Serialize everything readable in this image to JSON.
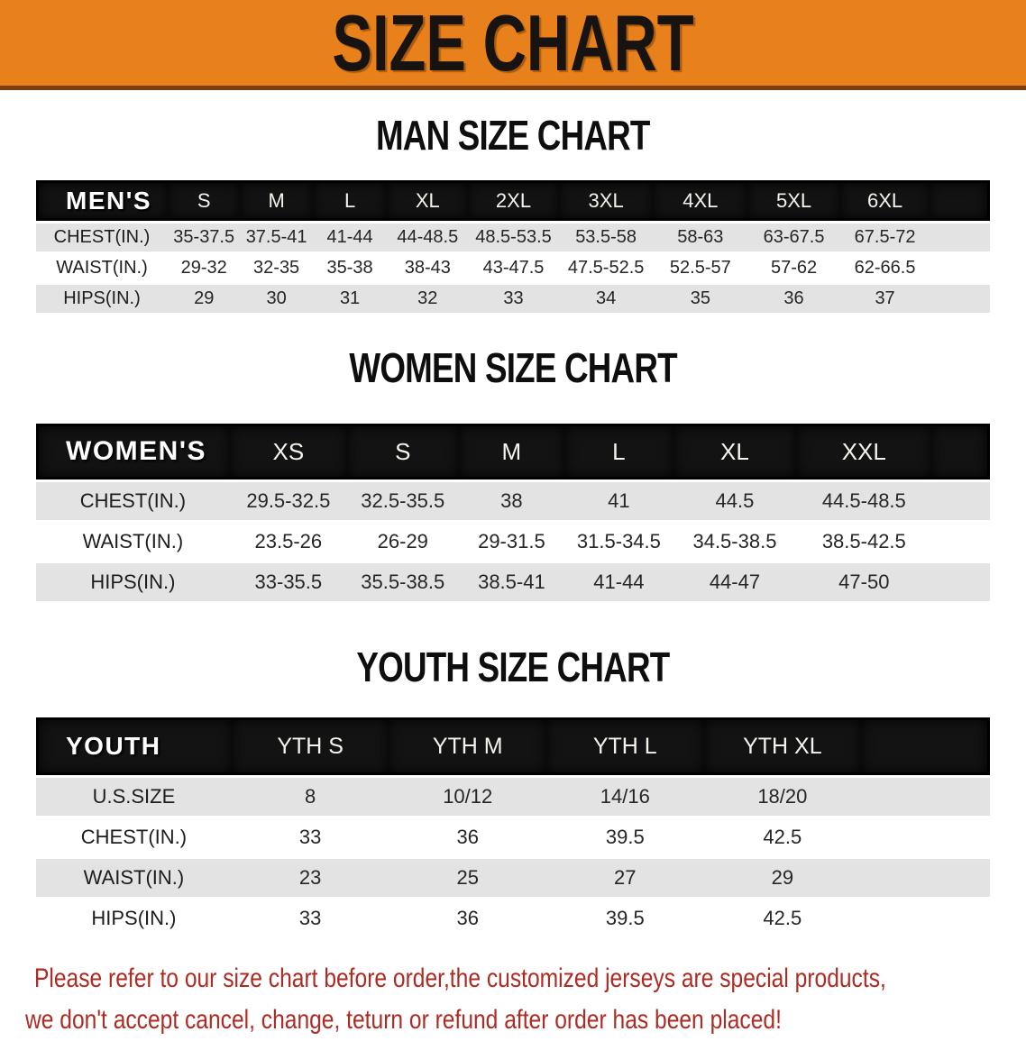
{
  "banner": {
    "title": "SIZE CHART"
  },
  "chart_data": [
    {
      "type": "table",
      "id": "men",
      "title": "MAN SIZE CHART",
      "corner_label": "MEN'S",
      "columns": [
        "S",
        "M",
        "L",
        "XL",
        "2XL",
        "3XL",
        "4XL",
        "5XL",
        "6XL"
      ],
      "rows": [
        {
          "label": "CHEST(IN.)",
          "values": [
            "35-37.5",
            "37.5-41",
            "41-44",
            "44-48.5",
            "48.5-53.5",
            "53.5-58",
            "58-63",
            "63-67.5",
            "67.5-72"
          ]
        },
        {
          "label": "WAIST(IN.)",
          "values": [
            "29-32",
            "32-35",
            "35-38",
            "38-43",
            "43-47.5",
            "47.5-52.5",
            "52.5-57",
            "57-62",
            "62-66.5"
          ]
        },
        {
          "label": "HIPS(IN.)",
          "values": [
            "29",
            "30",
            "31",
            "32",
            "33",
            "34",
            "35",
            "36",
            "37"
          ]
        }
      ]
    },
    {
      "type": "table",
      "id": "women",
      "title": "WOMEN SIZE CHART",
      "corner_label": "WOMEN'S",
      "columns": [
        "XS",
        "S",
        "M",
        "L",
        "XL",
        "XXL"
      ],
      "rows": [
        {
          "label": "CHEST(IN.)",
          "values": [
            "29.5-32.5",
            "32.5-35.5",
            "38",
            "41",
            "44.5",
            "44.5-48.5"
          ]
        },
        {
          "label": "WAIST(IN.)",
          "values": [
            "23.5-26",
            "26-29",
            "29-31.5",
            "31.5-34.5",
            "34.5-38.5",
            "38.5-42.5"
          ]
        },
        {
          "label": "HIPS(IN.)",
          "values": [
            "33-35.5",
            "35.5-38.5",
            "38.5-41",
            "41-44",
            "44-47",
            "47-50"
          ]
        }
      ]
    },
    {
      "type": "table",
      "id": "youth",
      "title": "YOUTH SIZE CHART",
      "corner_label": "YOUTH",
      "columns": [
        "YTH S",
        "YTH M",
        "YTH L",
        "YTH XL"
      ],
      "rows": [
        {
          "label": "U.S.SIZE",
          "values": [
            "8",
            "10/12",
            "14/16",
            "18/20"
          ]
        },
        {
          "label": "CHEST(IN.)",
          "values": [
            "33",
            "36",
            "39.5",
            "42.5"
          ]
        },
        {
          "label": "WAIST(IN.)",
          "values": [
            "23",
            "25",
            "27",
            "29"
          ]
        },
        {
          "label": "HIPS(IN.)",
          "values": [
            "33",
            "36",
            "39.5",
            "42.5"
          ]
        }
      ]
    }
  ],
  "disclaimer": {
    "line1": "Please refer to our size chart before order,the customized jerseys are special products,",
    "line2": "we don't accept cancel, change, teturn or refund after order has been placed!"
  },
  "colors": {
    "banner_bg": "#e8811b",
    "banner_border": "#7c3d0e",
    "header_bar": "#131313",
    "row_alt_gray": "#e3e3e3",
    "disclaimer_red": "#ae2b23"
  }
}
